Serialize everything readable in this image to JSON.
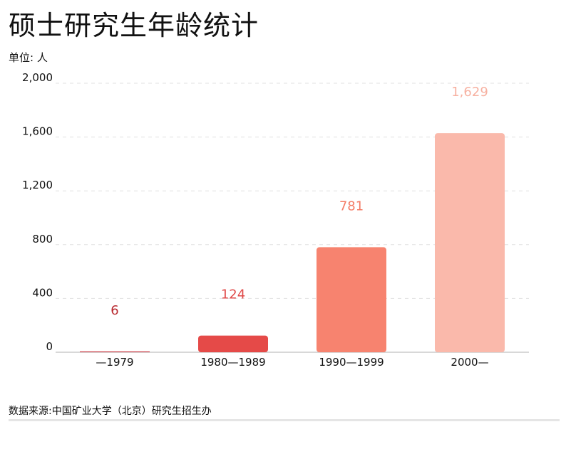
{
  "header": {
    "title": "硕士研究生年龄统计",
    "unit": "单位: 人"
  },
  "footer": {
    "source": "数据来源:中国矿业大学（北京）研究生招生办"
  },
  "chart_data": {
    "type": "bar",
    "title": "硕士研究生年龄统计",
    "ylabel": "单位: 人",
    "categories": [
      "—1979",
      "1980—1989",
      "1990—1999",
      "2000—"
    ],
    "values": [
      6,
      124,
      781,
      1629
    ],
    "value_labels": [
      "6",
      "124",
      "781",
      "1,629"
    ],
    "yticks": [
      0,
      400,
      800,
      1200,
      1600,
      2000
    ],
    "ytick_labels": [
      "0",
      "400",
      "800",
      "1,200",
      "1,600",
      "2,000"
    ],
    "ylim": [
      0,
      2000
    ],
    "grid": true,
    "bar_colors": [
      "#c8333b",
      "#e54a48",
      "#f7836f",
      "#fab9ab"
    ],
    "label_colors": [
      "#b8292f",
      "#e04a49",
      "#f47c66",
      "#f7b1a1"
    ]
  }
}
